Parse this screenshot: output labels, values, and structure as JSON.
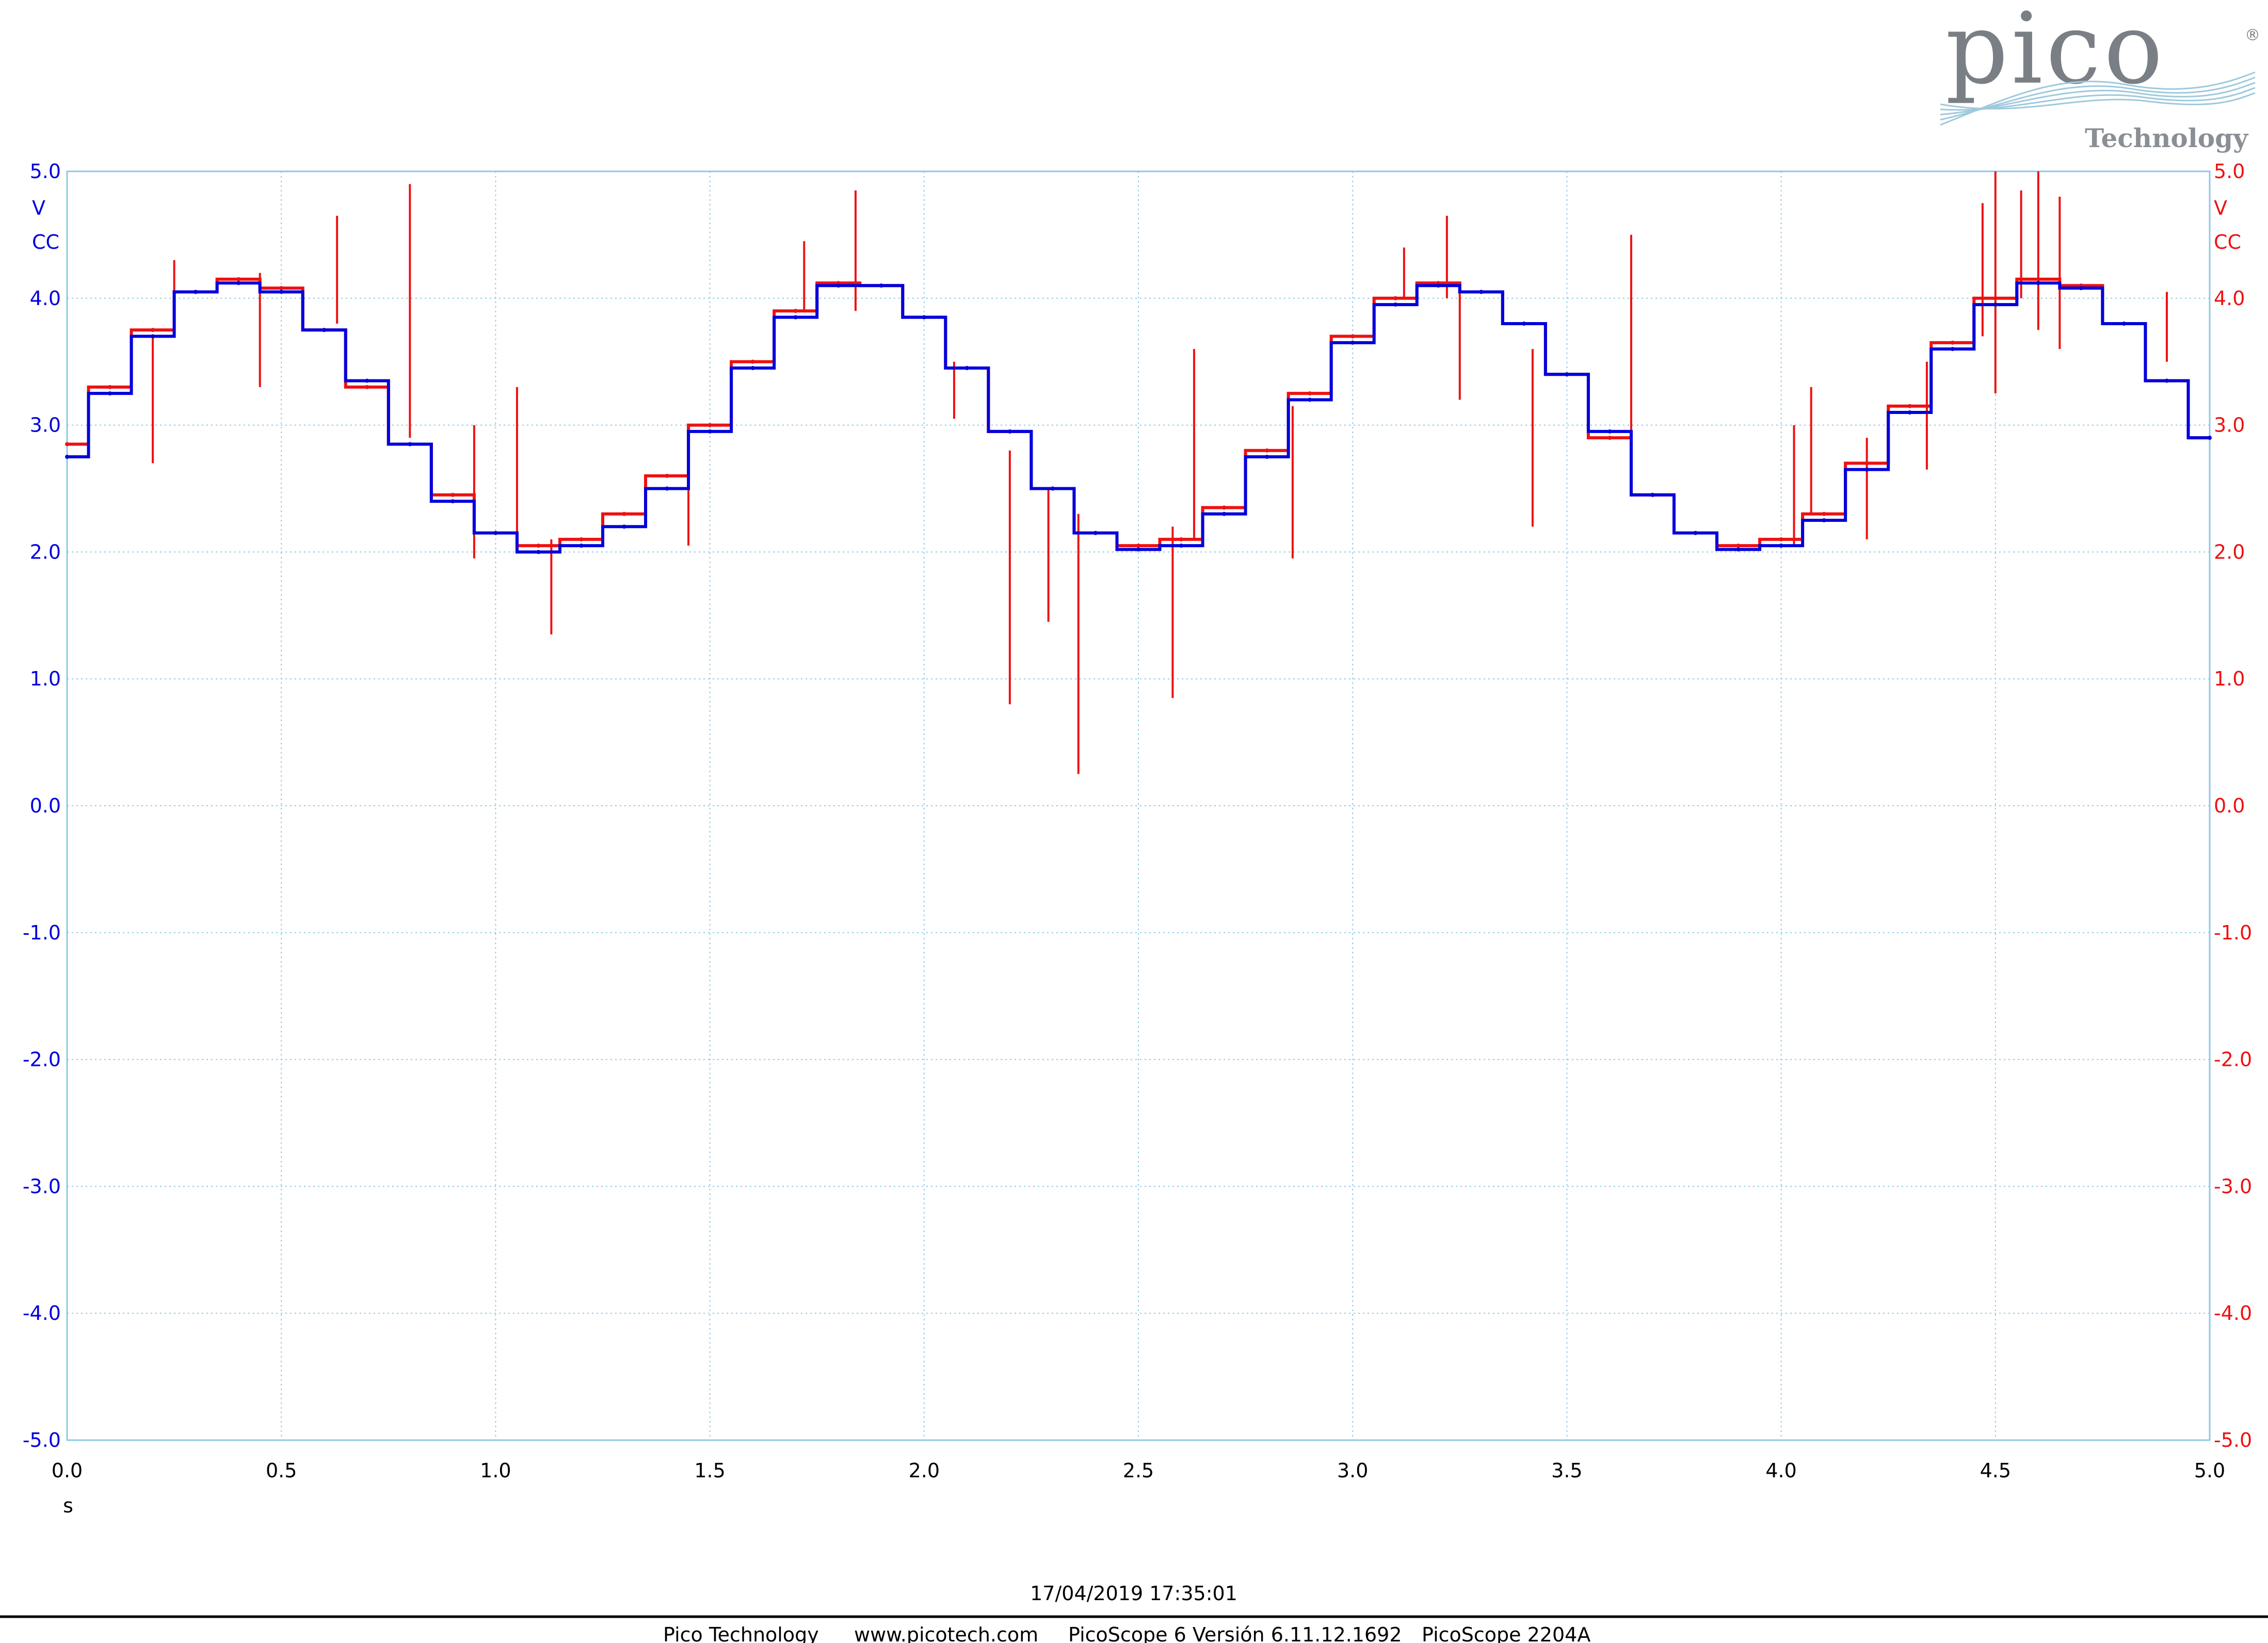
{
  "logo": {
    "word": "pico",
    "sub": "Technology",
    "reg": "®"
  },
  "chart_data": {
    "type": "line",
    "x_unit": "s",
    "xlim": [
      0.0,
      5.0
    ],
    "ylim": [
      -5.0,
      5.0
    ],
    "x_ticks": [
      "0.0",
      "0.5",
      "1.0",
      "1.5",
      "2.0",
      "2.5",
      "3.0",
      "3.5",
      "4.0",
      "4.5",
      "5.0"
    ],
    "y_ticks": [
      "5.0",
      "4.0",
      "3.0",
      "2.0",
      "1.0",
      "0.0",
      "-1.0",
      "-2.0",
      "-3.0",
      "-4.0",
      "-5.0"
    ],
    "left_axis": {
      "unit": "V",
      "coupling": "CC",
      "color": "#0000dd"
    },
    "right_axis": {
      "unit": "V",
      "coupling": "CC",
      "color": "#ee1111"
    },
    "series": [
      {
        "color": "#0000dd",
        "x": [
          0.0,
          0.1,
          0.2,
          0.3,
          0.4,
          0.5,
          0.6,
          0.7,
          0.8,
          0.9,
          1.0,
          1.1,
          1.2,
          1.3,
          1.4,
          1.5,
          1.6,
          1.7,
          1.8,
          1.9,
          2.0,
          2.1,
          2.2,
          2.3,
          2.4,
          2.5,
          2.6,
          2.7,
          2.8,
          2.9,
          3.0,
          3.1,
          3.2,
          3.3,
          3.4,
          3.5,
          3.6,
          3.7,
          3.8,
          3.9,
          4.0,
          4.1,
          4.2,
          4.3,
          4.4,
          4.5,
          4.6,
          4.7,
          4.8,
          4.9,
          5.0
        ],
        "y": [
          2.75,
          3.25,
          3.7,
          4.05,
          4.12,
          4.05,
          3.75,
          3.35,
          2.85,
          2.4,
          2.15,
          2.0,
          2.05,
          2.2,
          2.5,
          2.95,
          3.45,
          3.85,
          4.1,
          4.1,
          3.85,
          3.45,
          2.95,
          2.5,
          2.15,
          2.02,
          2.05,
          2.3,
          2.75,
          3.2,
          3.65,
          3.95,
          4.1,
          4.05,
          3.8,
          3.4,
          2.95,
          2.45,
          2.15,
          2.02,
          2.05,
          2.25,
          2.65,
          3.1,
          3.6,
          3.95,
          4.12,
          4.08,
          3.8,
          3.35,
          2.9
        ]
      },
      {
        "color": "#ee1111",
        "x": [
          0.0,
          0.1,
          0.2,
          0.3,
          0.4,
          0.5,
          0.6,
          0.7,
          0.8,
          0.9,
          1.0,
          1.1,
          1.2,
          1.3,
          1.4,
          1.5,
          1.6,
          1.7,
          1.8,
          1.9,
          2.0,
          2.1,
          2.2,
          2.3,
          2.4,
          2.5,
          2.6,
          2.7,
          2.8,
          2.9,
          3.0,
          3.1,
          3.2,
          3.3,
          3.4,
          3.5,
          3.6,
          3.7,
          3.8,
          3.9,
          4.0,
          4.1,
          4.2,
          4.3,
          4.4,
          4.5,
          4.6,
          4.7,
          4.8,
          4.9,
          5.0
        ],
        "y": [
          2.85,
          3.3,
          3.75,
          4.05,
          4.15,
          4.08,
          3.75,
          3.3,
          2.85,
          2.45,
          2.15,
          2.05,
          2.1,
          2.3,
          2.6,
          3.0,
          3.5,
          3.9,
          4.12,
          4.1,
          3.85,
          3.45,
          2.95,
          2.5,
          2.15,
          2.05,
          2.1,
          2.35,
          2.8,
          3.25,
          3.7,
          4.0,
          4.12,
          4.05,
          3.8,
          3.4,
          2.9,
          2.45,
          2.15,
          2.05,
          2.1,
          2.3,
          2.7,
          3.15,
          3.65,
          4.0,
          4.15,
          4.1,
          3.8,
          3.35,
          2.9
        ],
        "spikes": [
          {
            "x": 0.2,
            "from": 2.7,
            "to": 3.7
          },
          {
            "x": 0.25,
            "from": 3.8,
            "to": 4.3
          },
          {
            "x": 0.45,
            "from": 3.3,
            "to": 4.2
          },
          {
            "x": 0.63,
            "from": 3.8,
            "to": 4.65
          },
          {
            "x": 0.8,
            "from": 2.9,
            "to": 4.9
          },
          {
            "x": 0.95,
            "from": 1.95,
            "to": 3.0
          },
          {
            "x": 1.05,
            "from": 2.0,
            "to": 3.3
          },
          {
            "x": 1.13,
            "from": 1.35,
            "to": 2.1
          },
          {
            "x": 1.45,
            "from": 2.05,
            "to": 2.9
          },
          {
            "x": 1.72,
            "from": 3.9,
            "to": 4.45
          },
          {
            "x": 1.84,
            "from": 3.9,
            "to": 4.85
          },
          {
            "x": 2.07,
            "from": 3.05,
            "to": 3.5
          },
          {
            "x": 2.2,
            "from": 0.8,
            "to": 2.8
          },
          {
            "x": 2.29,
            "from": 1.45,
            "to": 2.5
          },
          {
            "x": 2.36,
            "from": 0.25,
            "to": 2.3
          },
          {
            "x": 2.58,
            "from": 0.85,
            "to": 2.2
          },
          {
            "x": 2.63,
            "from": 2.1,
            "to": 3.6
          },
          {
            "x": 2.86,
            "from": 1.95,
            "to": 3.15
          },
          {
            "x": 3.12,
            "from": 4.0,
            "to": 4.4
          },
          {
            "x": 3.22,
            "from": 4.0,
            "to": 4.65
          },
          {
            "x": 3.25,
            "from": 3.2,
            "to": 4.1
          },
          {
            "x": 3.42,
            "from": 2.2,
            "to": 3.6
          },
          {
            "x": 3.65,
            "from": 2.7,
            "to": 4.5
          },
          {
            "x": 4.03,
            "from": 2.05,
            "to": 3.0
          },
          {
            "x": 4.07,
            "from": 2.3,
            "to": 3.3
          },
          {
            "x": 4.2,
            "from": 2.1,
            "to": 2.9
          },
          {
            "x": 4.34,
            "from": 2.65,
            "to": 3.5
          },
          {
            "x": 4.47,
            "from": 3.7,
            "to": 4.75
          },
          {
            "x": 4.5,
            "from": 3.25,
            "to": 5.0
          },
          {
            "x": 4.56,
            "from": 4.0,
            "to": 4.85
          },
          {
            "x": 4.6,
            "from": 3.75,
            "to": 5.0
          },
          {
            "x": 4.65,
            "from": 3.6,
            "to": 4.8
          },
          {
            "x": 4.9,
            "from": 3.5,
            "to": 4.05
          }
        ]
      }
    ],
    "grid": true
  },
  "footer": {
    "timestamp": "17/04/2019 17:35:01",
    "company": "Pico Technology",
    "website": "www.picotech.com",
    "software": "PicoScope 6 Versión 6.11.12.1692",
    "device": "PicoScope 2204A"
  }
}
